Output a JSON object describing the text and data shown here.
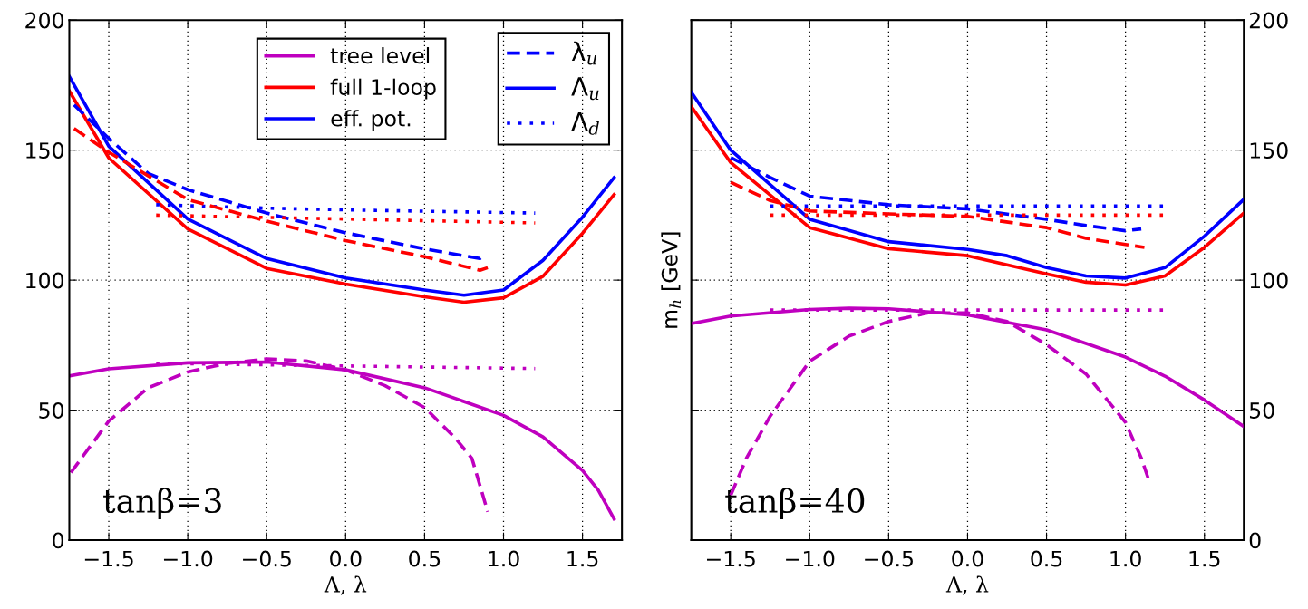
{
  "chart_data": [
    {
      "type": "line",
      "xlabel": "Λ, λ",
      "xlim": [
        -1.75,
        1.75
      ],
      "xticks": [
        {
          "value": -1.5,
          "label": "−1.5"
        },
        {
          "value": -1.0,
          "label": "−1.0"
        },
        {
          "value": -0.5,
          "label": "−0.5"
        },
        {
          "value": 0.0,
          "label": "0.0"
        },
        {
          "value": 0.5,
          "label": "0.5"
        },
        {
          "value": 1.0,
          "label": "1.0"
        },
        {
          "value": 1.5,
          "label": "1.5"
        }
      ],
      "ylim": [
        0,
        200
      ],
      "yticks": [
        0,
        50,
        100,
        150,
        200
      ],
      "grid": true,
      "legend": "top right",
      "annotations": [
        "tanβ=3"
      ],
      "series": [
        {
          "name": "tree level",
          "color": "#bf00bf",
          "line_style": "solid",
          "x": [
            -1.75,
            -1.5,
            -1.0,
            -0.5,
            0.0,
            0.5,
            1.0,
            1.25,
            1.5,
            1.6,
            1.7
          ],
          "values": [
            63.2,
            65.9,
            68.2,
            68.5,
            65.5,
            58.6,
            48,
            39.7,
            26.8,
            19.2,
            8.2
          ]
        },
        {
          "name": "full 1-loop",
          "color": "#ff0000",
          "line_style": "solid",
          "x": [
            -1.75,
            -1.5,
            -1.0,
            -0.5,
            0.0,
            0.5,
            0.75,
            1.0,
            1.25,
            1.5,
            1.7
          ],
          "values": [
            172.7,
            147,
            119.7,
            104.5,
            98.5,
            93.6,
            91.5,
            93.2,
            101.5,
            118,
            132.9
          ]
        },
        {
          "name": "eff. pot.",
          "color": "#0000ff",
          "line_style": "solid",
          "x": [
            -1.75,
            -1.5,
            -1.0,
            -0.5,
            0.0,
            0.5,
            0.75,
            1.0,
            1.25,
            1.5,
            1.7
          ],
          "values": [
            178.3,
            151.5,
            123.5,
            108.3,
            100.8,
            96.2,
            94.2,
            96.2,
            107.6,
            124.2,
            139.4
          ]
        },
        {
          "name": "λ$_{u}$",
          "color": "#0000ff",
          "line_style": "dashed",
          "x": [
            -1.72,
            -1.5,
            -1.25,
            -1.0,
            -0.5,
            0.0,
            0.5,
            0.85,
            0.88
          ],
          "values": [
            167.4,
            154.5,
            141,
            134.8,
            125.8,
            118.2,
            112,
            108.3,
            109.8
          ]
        },
        {
          "name": "Λ$_{u}$",
          "color": "#0000ff",
          "line_style": "solid"
        },
        {
          "name": "Λ$_{d}$",
          "color": "#0000ff",
          "line_style": "dotted",
          "x": [
            -1.2,
            -0.5,
            0.0,
            0.5,
            1.2
          ],
          "values": [
            129,
            127.7,
            127,
            126.5,
            125.8
          ]
        },
        {
          "color": "#ff0000",
          "line_style": "dashed",
          "x": [
            -1.72,
            -1.5,
            -1.0,
            -0.5,
            0.0,
            0.5,
            0.85,
            0.9
          ],
          "values": [
            158.3,
            149.2,
            131,
            122.7,
            115.2,
            109,
            103.8,
            104.8
          ]
        },
        {
          "color": "#ff0000",
          "line_style": "dotted",
          "x": [
            -1.2,
            0.0,
            1.2
          ],
          "values": [
            125,
            123.5,
            122
          ]
        },
        {
          "color": "#bf00bf",
          "line_style": "dashed",
          "x": [
            -1.74,
            -1.5,
            -1.25,
            -1.0,
            -0.75,
            -0.5,
            -0.25,
            0.0,
            0.25,
            0.5,
            0.7,
            0.8,
            0.9
          ],
          "values": [
            26,
            45.8,
            58.6,
            64.7,
            68,
            69.7,
            68.9,
            65.5,
            59.4,
            51,
            38.9,
            31.4,
            10.9
          ]
        },
        {
          "color": "#bf00bf",
          "line_style": "dotted",
          "x": [
            -1.2,
            0.0,
            1.2
          ],
          "values": [
            68,
            67,
            66
          ]
        }
      ]
    },
    {
      "type": "line",
      "xlabel": "Λ, λ",
      "ylabel": "m$_{h}$ [GeV]",
      "xlim": [
        -1.75,
        1.75
      ],
      "xticks": [
        {
          "value": -1.5,
          "label": "−1.5"
        },
        {
          "value": -1.0,
          "label": "−1.0"
        },
        {
          "value": -0.5,
          "label": "−0.5"
        },
        {
          "value": 0.0,
          "label": "0.0"
        },
        {
          "value": 0.5,
          "label": "0.5"
        },
        {
          "value": 1.0,
          "label": "1.0"
        },
        {
          "value": 1.5,
          "label": "1.5"
        }
      ],
      "y2lim": [
        0,
        200
      ],
      "y2ticks": [
        0,
        50,
        100,
        150,
        200
      ],
      "grid": true,
      "annotations": [
        "tanβ=40"
      ],
      "series": [
        {
          "color": "#bf00bf",
          "line_style": "solid",
          "axis": "y2",
          "x": [
            -1.75,
            -1.5,
            -1.0,
            -0.75,
            -0.5,
            0.0,
            0.5,
            1.0,
            1.25,
            1.5,
            1.75
          ],
          "values": [
            83.3,
            86.2,
            88.7,
            89.2,
            89,
            86.6,
            80.9,
            70.4,
            63.1,
            53.9,
            43.7
          ]
        },
        {
          "color": "#ff0000",
          "line_style": "solid",
          "axis": "y2",
          "x": [
            -1.75,
            -1.5,
            -1.0,
            -0.5,
            0.0,
            0.5,
            0.75,
            1.0,
            1.25,
            1.5,
            1.75
          ],
          "values": [
            166.8,
            145.2,
            120.2,
            112.1,
            109.4,
            102.4,
            99.2,
            98.1,
            101.6,
            112.6,
            125.8
          ]
        },
        {
          "color": "#0000ff",
          "line_style": "solid",
          "axis": "y2",
          "x": [
            -1.75,
            -1.5,
            -1.0,
            -0.5,
            0.0,
            0.25,
            0.5,
            0.75,
            1.0,
            1.25,
            1.5,
            1.75
          ],
          "values": [
            172.3,
            150,
            123.4,
            114.8,
            111.8,
            109.4,
            104.8,
            101.6,
            100.8,
            104.8,
            116.9,
            131.1
          ]
        },
        {
          "color": "#0000ff",
          "line_style": "dashed",
          "axis": "y2",
          "x": [
            -1.5,
            -1.25,
            -1.0,
            -0.5,
            0.0,
            0.5,
            0.75,
            1.0,
            1.1
          ],
          "values": [
            147.1,
            139.5,
            132.3,
            129,
            127.4,
            123.4,
            121,
            119,
            119.7
          ]
        },
        {
          "color": "#ff0000",
          "line_style": "dashed",
          "axis": "y2",
          "x": [
            -1.5,
            -1.25,
            -1.0,
            -0.5,
            0.0,
            0.5,
            0.75,
            1.0,
            1.12
          ],
          "values": [
            137.6,
            130.6,
            126.6,
            125.5,
            124.5,
            120.2,
            116.1,
            113.7,
            112.6
          ]
        },
        {
          "color": "#0000ff",
          "line_style": "dotted",
          "axis": "y2",
          "x": [
            -1.25,
            1.25
          ],
          "values": [
            128.5,
            128.5
          ]
        },
        {
          "color": "#ff0000",
          "line_style": "dotted",
          "axis": "y2",
          "x": [
            -1.25,
            1.25
          ],
          "values": [
            125,
            125
          ]
        },
        {
          "color": "#bf00bf",
          "line_style": "dashed",
          "axis": "y2",
          "x": [
            -1.5,
            -1.4,
            -1.25,
            -1.0,
            -0.75,
            -0.5,
            -0.25,
            0.0,
            0.25,
            0.5,
            0.75,
            1.0,
            1.1,
            1.15
          ],
          "values": [
            17.3,
            31.6,
            47.7,
            68.8,
            78.5,
            84.1,
            87.4,
            87.4,
            84.1,
            75.2,
            63.9,
            45.3,
            31.6,
            22.7
          ]
        },
        {
          "color": "#bf00bf",
          "line_style": "dotted",
          "axis": "y2",
          "x": [
            -1.25,
            1.25
          ],
          "values": [
            88.5,
            88.5
          ]
        }
      ]
    }
  ]
}
